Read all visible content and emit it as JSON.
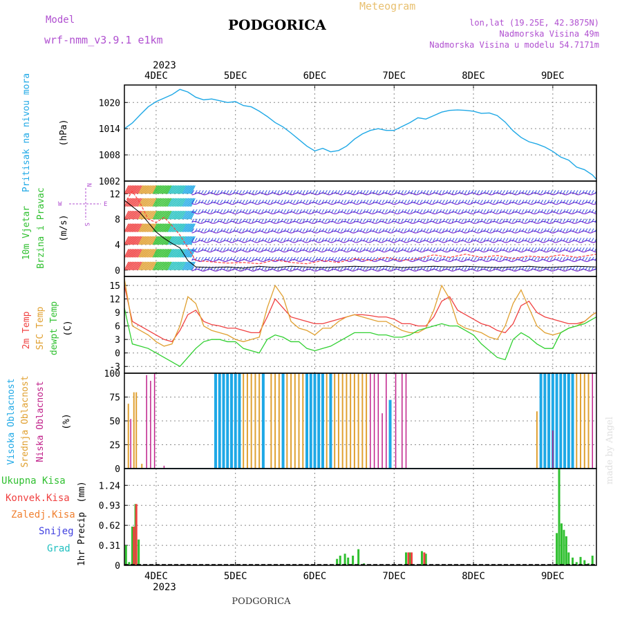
{
  "header": {
    "model_label": "Model",
    "model_name": "wrf-nmm_v3.9.1  e1km",
    "station": "PODGORICA",
    "product": "Meteogram",
    "location": "lon,lat (19.25E, 42.3875N)",
    "elevation": "Nadmorska Visina 49m",
    "model_elevation": "Nadmorska Visina u modelu 54.7171m",
    "year": "2023",
    "footer_station": "PODGORICA",
    "credit": "made by Angel"
  },
  "colors": {
    "pressure": "#1ea8e6",
    "wind_speed": "#7a2bd1",
    "gust": "#ff4040",
    "temp2m": "#f04040",
    "sfc_temp": "#e0a030",
    "dewpoint": "#30d030",
    "cloud_high": "#1ea8e6",
    "cloud_mid": "#e0a030",
    "cloud_low": "#c0208a",
    "precip_total": "#30c030",
    "precip_conv": "#f04040",
    "precip_frozen": "#f08030",
    "precip_snow": "#4040e0",
    "precip_graupel": "#20c0c0",
    "purple_text": "#b050d0",
    "gold_text": "#e8c070"
  },
  "chart_data": [
    {
      "type": "line",
      "id": "pressure",
      "ylabel": "Pritisak na nivou mora",
      "unit": "(hPa)",
      "ylim": [
        1002,
        1024
      ],
      "yticks": [
        1002,
        1008,
        1014,
        1020
      ],
      "x_day_labels": [
        "4DEC",
        "5DEC",
        "6DEC",
        "7DEC",
        "8DEC",
        "9DEC"
      ],
      "x_day_positions": [
        4,
        5,
        6,
        7,
        8,
        9
      ],
      "xlim": [
        3.6,
        9.55
      ],
      "series": [
        {
          "x": [
            3.6,
            3.7,
            3.8,
            3.9,
            4.0,
            4.1,
            4.2,
            4.3,
            4.4,
            4.5,
            4.6,
            4.7,
            4.8,
            4.9,
            5.0,
            5.1,
            5.2,
            5.3,
            5.4,
            5.5,
            5.6,
            5.7,
            5.8,
            5.9,
            6.0,
            6.1,
            6.2,
            6.3,
            6.4,
            6.5,
            6.6,
            6.7,
            6.8,
            6.9,
            7.0,
            7.1,
            7.2,
            7.3,
            7.4,
            7.5,
            7.6,
            7.7,
            7.8,
            7.9,
            8.0,
            8.1,
            8.2,
            8.3,
            8.4,
            8.5,
            8.6,
            8.7,
            8.8,
            8.9,
            9.0,
            9.1,
            9.2,
            9.3,
            9.4,
            9.5,
            9.55
          ],
          "y": [
            1014.0,
            1015.3,
            1017.2,
            1019.0,
            1020.2,
            1021.0,
            1021.8,
            1023.0,
            1022.4,
            1021.2,
            1020.6,
            1020.8,
            1020.4,
            1020.0,
            1020.2,
            1019.3,
            1019.0,
            1018.0,
            1016.8,
            1015.4,
            1014.4,
            1013.0,
            1011.5,
            1010.0,
            1008.9,
            1009.5,
            1008.7,
            1009.0,
            1010.0,
            1011.6,
            1012.8,
            1013.6,
            1014.0,
            1013.6,
            1013.6,
            1014.5,
            1015.4,
            1016.5,
            1016.2,
            1017.0,
            1017.8,
            1018.2,
            1018.3,
            1018.2,
            1018.0,
            1017.5,
            1017.6,
            1017.0,
            1015.5,
            1013.5,
            1012.0,
            1011.0,
            1010.5,
            1009.8,
            1008.8,
            1007.5,
            1006.8,
            1005.2,
            1004.6,
            1003.4,
            1002.4
          ]
        }
      ]
    },
    {
      "type": "line",
      "id": "wind",
      "ylabel": "10m Vjetar",
      "ylabel2": "Brzina i Pravac",
      "unit": "(m/s)",
      "ylim": [
        -1,
        14
      ],
      "yticks": [
        0,
        4,
        8,
        12
      ],
      "compass": {
        "n": "N",
        "s": "S",
        "w": "W",
        "e": "E"
      },
      "rain_start_x": 4.45,
      "series": [
        {
          "name": "gust",
          "x": [
            3.6,
            3.7,
            3.8,
            3.9,
            4.0,
            4.1,
            4.2,
            4.3,
            4.4,
            4.5,
            4.7,
            4.9,
            5.1,
            5.3,
            5.5,
            5.7,
            5.9,
            6.1,
            6.3,
            6.5,
            6.7,
            6.9,
            7.1,
            7.3,
            7.5,
            7.7,
            7.9,
            8.1,
            8.3,
            8.5,
            8.7,
            8.9,
            9.1,
            9.3,
            9.55
          ],
          "y": [
            10.5,
            12.4,
            10.5,
            8.0,
            7.5,
            8.3,
            7.0,
            5.5,
            3.5,
            1.5,
            1.3,
            1.1,
            1.2,
            1.0,
            1.6,
            1.2,
            1.0,
            1.5,
            1.2,
            1.8,
            1.5,
            2.0,
            1.5,
            1.8,
            2.4,
            2.0,
            2.5,
            2.0,
            2.3,
            1.8,
            2.2,
            2.0,
            2.4,
            2.0,
            2.5
          ]
        },
        {
          "name": "speed",
          "x": [
            3.6,
            3.7,
            3.8,
            3.9,
            4.0,
            4.1,
            4.2,
            4.3,
            4.4,
            4.5,
            4.7,
            4.9,
            5.1,
            5.3,
            5.5,
            5.7,
            5.9,
            6.1,
            6.3,
            6.5,
            6.7,
            6.9,
            7.1,
            7.3,
            7.5,
            7.7,
            7.9,
            8.1,
            8.3,
            8.5,
            8.7,
            8.9,
            9.1,
            9.3,
            9.55
          ],
          "y": [
            11.0,
            10.0,
            9.0,
            7.5,
            6.0,
            5.0,
            4.2,
            3.5,
            1.5,
            0.5,
            0.4,
            0.5,
            0.3,
            0.6,
            0.4,
            0.6,
            0.5,
            0.4,
            0.5,
            0.6,
            0.5,
            0.6,
            0.4,
            0.5,
            0.6,
            0.5,
            0.6,
            0.5,
            0.4,
            0.5,
            0.6,
            0.4,
            0.5,
            0.6,
            0.5
          ]
        }
      ]
    },
    {
      "type": "line",
      "id": "temperature",
      "ylabels": [
        "2m Temp",
        "SFC Temp",
        "dewpt Temp"
      ],
      "unit": "(C)",
      "ylim": [
        -4.5,
        17
      ],
      "yticks": [
        -3,
        0,
        3,
        6,
        9,
        12,
        15
      ],
      "series": [
        {
          "name": "2m Temp",
          "x": [
            3.6,
            3.7,
            3.8,
            3.9,
            4.0,
            4.1,
            4.2,
            4.3,
            4.4,
            4.5,
            4.6,
            4.7,
            4.8,
            4.9,
            5.0,
            5.1,
            5.2,
            5.3,
            5.4,
            5.5,
            5.6,
            5.7,
            5.8,
            5.9,
            6.0,
            6.1,
            6.2,
            6.3,
            6.4,
            6.5,
            6.6,
            6.7,
            6.8,
            6.9,
            7.0,
            7.1,
            7.2,
            7.3,
            7.4,
            7.5,
            7.6,
            7.7,
            7.8,
            7.9,
            8.0,
            8.1,
            8.2,
            8.3,
            8.4,
            8.5,
            8.6,
            8.7,
            8.8,
            8.9,
            9.0,
            9.1,
            9.2,
            9.3,
            9.4,
            9.5,
            9.55
          ],
          "y": [
            15.0,
            7.0,
            6.0,
            5.0,
            4.0,
            3.0,
            2.5,
            5.0,
            8.5,
            9.5,
            7.0,
            6.3,
            6.0,
            5.5,
            5.5,
            5.0,
            4.5,
            4.5,
            8.0,
            12.0,
            10.0,
            8.0,
            7.5,
            7.0,
            6.5,
            6.5,
            7.0,
            7.5,
            8.0,
            8.5,
            8.5,
            8.3,
            8.0,
            8.0,
            7.5,
            6.5,
            6.5,
            6.0,
            6.0,
            8.0,
            11.5,
            12.5,
            9.5,
            8.5,
            7.5,
            6.5,
            6.0,
            5.0,
            4.5,
            6.5,
            10.5,
            11.5,
            9.0,
            8.0,
            7.5,
            7.0,
            6.5,
            6.5,
            7.0,
            8.5,
            9.0
          ]
        },
        {
          "name": "SFC Temp",
          "x": [
            3.6,
            3.7,
            3.8,
            3.9,
            4.0,
            4.1,
            4.2,
            4.3,
            4.4,
            4.5,
            4.6,
            4.7,
            4.8,
            4.9,
            5.0,
            5.1,
            5.2,
            5.3,
            5.4,
            5.5,
            5.6,
            5.7,
            5.8,
            5.9,
            6.0,
            6.1,
            6.2,
            6.3,
            6.4,
            6.5,
            6.6,
            6.7,
            6.8,
            6.9,
            7.0,
            7.1,
            7.2,
            7.3,
            7.4,
            7.5,
            7.6,
            7.7,
            7.8,
            7.9,
            8.0,
            8.1,
            8.2,
            8.3,
            8.4,
            8.5,
            8.6,
            8.7,
            8.8,
            8.9,
            9.0,
            9.1,
            9.2,
            9.3,
            9.4,
            9.5,
            9.55
          ],
          "y": [
            16.5,
            6.0,
            5.0,
            4.0,
            2.5,
            1.5,
            2.0,
            6.0,
            12.5,
            11.0,
            6.0,
            5.0,
            4.5,
            4.0,
            3.0,
            2.5,
            3.0,
            3.5,
            10.0,
            15.0,
            12.5,
            7.0,
            5.5,
            5.0,
            4.0,
            5.5,
            5.5,
            7.0,
            8.0,
            8.5,
            8.0,
            7.5,
            7.0,
            7.0,
            6.0,
            5.0,
            4.5,
            4.5,
            5.5,
            9.5,
            15.0,
            12.0,
            6.5,
            5.5,
            5.0,
            4.5,
            3.5,
            3.0,
            6.0,
            11.0,
            14.0,
            10.0,
            6.0,
            4.5,
            4.0,
            4.5,
            5.5,
            6.0,
            7.0,
            8.5,
            9.0
          ]
        },
        {
          "name": "dewpt Temp",
          "x": [
            3.6,
            3.7,
            3.8,
            3.9,
            4.0,
            4.1,
            4.2,
            4.3,
            4.4,
            4.5,
            4.6,
            4.7,
            4.8,
            4.9,
            5.0,
            5.1,
            5.2,
            5.3,
            5.4,
            5.5,
            5.6,
            5.7,
            5.8,
            5.9,
            6.0,
            6.1,
            6.2,
            6.3,
            6.4,
            6.5,
            6.6,
            6.7,
            6.8,
            6.9,
            7.0,
            7.1,
            7.2,
            7.3,
            7.4,
            7.5,
            7.6,
            7.7,
            7.8,
            7.9,
            8.0,
            8.1,
            8.2,
            8.3,
            8.4,
            8.5,
            8.6,
            8.7,
            8.8,
            8.9,
            9.0,
            9.1,
            9.2,
            9.3,
            9.4,
            9.5,
            9.55
          ],
          "y": [
            10.0,
            2.0,
            1.5,
            1.0,
            0.0,
            -1.0,
            -2.0,
            -3.0,
            -1.0,
            1.0,
            2.5,
            3.0,
            3.0,
            2.5,
            2.5,
            1.0,
            0.5,
            0.0,
            3.0,
            4.0,
            3.5,
            2.5,
            2.5,
            1.0,
            0.5,
            1.0,
            1.5,
            2.5,
            3.5,
            4.5,
            4.5,
            4.5,
            4.0,
            4.0,
            3.5,
            3.5,
            4.0,
            5.0,
            5.5,
            6.0,
            6.5,
            6.0,
            6.0,
            5.0,
            4.0,
            2.0,
            0.5,
            -1.0,
            -1.5,
            3.0,
            4.5,
            3.5,
            2.0,
            1.0,
            1.0,
            4.5,
            5.5,
            6.0,
            6.5,
            7.5,
            8.0
          ]
        }
      ]
    },
    {
      "type": "bar",
      "id": "clouds",
      "ylabels": [
        "Visoka Oblacnost",
        "Srednja Oblacnost",
        "Niska Oblacnost"
      ],
      "unit": "(%)",
      "ylim": [
        0,
        100
      ],
      "yticks": [
        0,
        25,
        50,
        75,
        100
      ],
      "series": [
        {
          "name": "Visoka Oblacnost",
          "x": [
            4.75,
            4.8,
            4.85,
            4.9,
            4.95,
            5.0,
            5.05,
            5.35,
            5.6,
            5.9,
            5.95,
            6.0,
            6.05,
            6.1,
            6.2,
            6.95,
            8.85,
            8.9,
            8.95,
            9.0,
            9.05,
            9.1,
            9.15,
            9.2,
            9.25
          ],
          "values": [
            100,
            100,
            100,
            100,
            100,
            100,
            100,
            100,
            100,
            100,
            100,
            100,
            100,
            100,
            100,
            72,
            100,
            100,
            100,
            100,
            100,
            100,
            100,
            100,
            100
          ]
        },
        {
          "name": "Srednja Oblacnost",
          "x": [
            3.65,
            3.72,
            3.75,
            3.82,
            5.1,
            5.15,
            5.2,
            5.25,
            5.3,
            5.45,
            5.5,
            5.55,
            5.65,
            5.7,
            5.75,
            5.8,
            5.85,
            6.15,
            6.25,
            6.3,
            6.35,
            6.4,
            6.45,
            6.5,
            6.55,
            6.6,
            6.65,
            8.8,
            9.3,
            9.35,
            9.4,
            9.45
          ],
          "values": [
            68,
            80,
            80,
            5,
            100,
            100,
            100,
            100,
            100,
            100,
            100,
            100,
            100,
            100,
            100,
            100,
            100,
            100,
            100,
            100,
            100,
            100,
            100,
            100,
            100,
            100,
            100,
            60,
            100,
            100,
            100,
            100
          ]
        },
        {
          "name": "Niska Oblacnost",
          "x": [
            3.68,
            3.88,
            3.93,
            3.98,
            4.1,
            4.3,
            4.5,
            6.7,
            6.75,
            6.8,
            6.85,
            6.9,
            7.02,
            7.1,
            7.15,
            9.0,
            9.5
          ],
          "values": [
            52,
            98,
            92,
            100,
            3,
            0,
            0,
            100,
            100,
            100,
            58,
            100,
            100,
            100,
            100,
            40,
            100
          ]
        }
      ]
    },
    {
      "type": "bar",
      "id": "precip",
      "ylabel": "1hr Precip",
      "unit": "(mm)",
      "legend": [
        "Ukupna Kisa",
        "Konvek.Kisa",
        "Zaledj.Kisa",
        "Snijeg",
        "Grad"
      ],
      "ylim": [
        0,
        1.5
      ],
      "yticks": [
        0,
        0.31,
        0.62,
        0.93,
        1.24
      ],
      "series": [
        {
          "name": "Ukupna Kisa",
          "x": [
            3.62,
            3.66,
            3.7,
            3.74,
            3.78,
            6.28,
            6.32,
            6.38,
            6.42,
            6.48,
            6.55,
            6.62,
            7.15,
            7.2,
            7.35,
            7.4,
            9.05,
            9.08,
            9.11,
            9.14,
            9.17,
            9.2,
            9.25,
            9.3,
            9.35,
            9.4,
            9.45,
            9.5
          ],
          "values": [
            0.31,
            0.05,
            0.6,
            0.95,
            0.4,
            0.1,
            0.15,
            0.18,
            0.12,
            0.15,
            0.25,
            0.03,
            0.2,
            0.2,
            0.22,
            0.18,
            0.5,
            1.5,
            0.65,
            0.55,
            0.45,
            0.2,
            0.12,
            0.05,
            0.13,
            0.08,
            0.03,
            0.15
          ]
        },
        {
          "name": "Konvek.Kisa",
          "x": [
            3.72,
            3.75,
            7.18,
            7.22,
            7.38
          ],
          "values": [
            0.6,
            0.95,
            0.2,
            0.2,
            0.2
          ]
        }
      ]
    }
  ]
}
